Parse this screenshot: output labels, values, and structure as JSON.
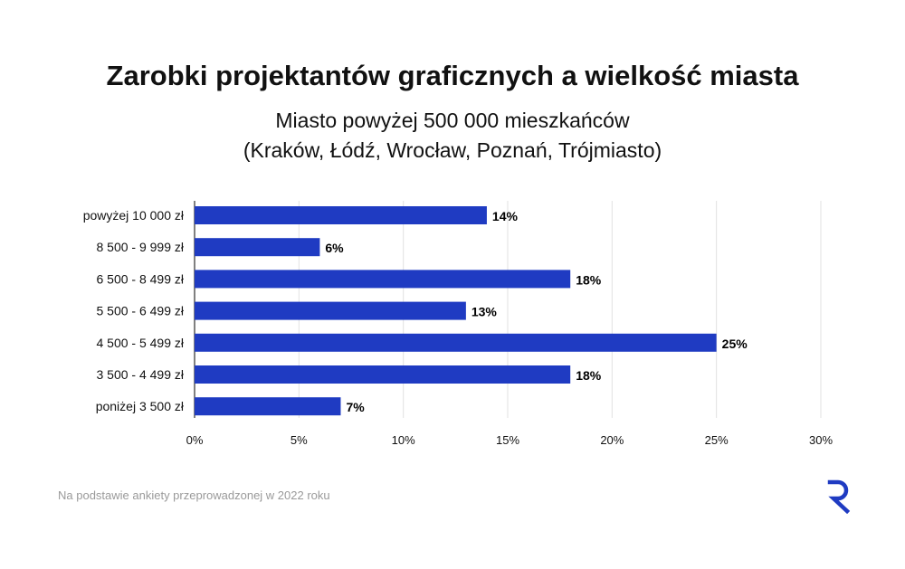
{
  "title": "Zarobki projektantów graficznych a wielkość miasta",
  "subtitle_lines": [
    "Miasto powyżej 500 000 mieszkańców",
    "(Kraków, Łódź, Wrocław, Poznań, Trójmiasto)"
  ],
  "footnote": "Na podstawie ankiety przeprowadzonej w 2022 roku",
  "logo_icon": "brand-r-logo-icon",
  "colors": {
    "bar": "#1f3bc2",
    "grid": "#e2e2e2",
    "axis": "#000000",
    "logo": "#1f3bc2"
  },
  "chart_data": {
    "type": "bar",
    "orientation": "horizontal",
    "categories": [
      "powyżej 10 000 zł",
      "8 500 - 9 999 zł",
      "6 500 - 8 499 zł",
      "5 500 - 6 499 zł",
      "4 500 - 5 499 zł",
      "3 500 - 4 499 zł",
      "poniżej 3 500 zł"
    ],
    "values": [
      14,
      6,
      18,
      13,
      25,
      18,
      7
    ],
    "data_labels": [
      "14%",
      "6%",
      "18%",
      "13%",
      "25%",
      "18%",
      "7%"
    ],
    "xlim": [
      0,
      30
    ],
    "xticks": [
      0,
      5,
      10,
      15,
      20,
      25,
      30
    ],
    "xtick_labels": [
      "0%",
      "5%",
      "10%",
      "15%",
      "20%",
      "25%",
      "30%"
    ],
    "grid": true,
    "legend": "none",
    "xlabel": "",
    "ylabel": ""
  }
}
